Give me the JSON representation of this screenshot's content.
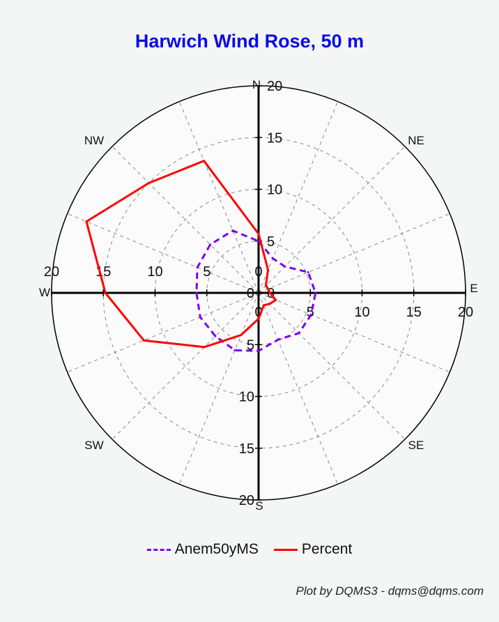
{
  "chart_data": {
    "type": "polar-line",
    "title": "Harwich Wind Rose, 50 m",
    "credit": "Plot by DQMS3 - dqms@dqms.com",
    "directions": [
      "N",
      "NE",
      "E",
      "SE",
      "S",
      "SW",
      "W",
      "NW"
    ],
    "radial_range": [
      0,
      20
    ],
    "radial_ticks": [
      0,
      5,
      10,
      15,
      20
    ],
    "grid": true,
    "legend_position": "bottom",
    "series": [
      {
        "name": "Anem50yMS",
        "style": "dashed",
        "color": "#7b00f0",
        "points": [
          {
            "angle": 0,
            "r": 5.0
          },
          {
            "angle": 22.5,
            "r": 3.6
          },
          {
            "angle": 45,
            "r": 3.6
          },
          {
            "angle": 67.5,
            "r": 5.2
          },
          {
            "angle": 90,
            "r": 5.5
          },
          {
            "angle": 112.5,
            "r": 5.5
          },
          {
            "angle": 135,
            "r": 5.5
          },
          {
            "angle": 157.5,
            "r": 4.9
          },
          {
            "angle": 180,
            "r": 5.6
          },
          {
            "angle": 202.5,
            "r": 6.0
          },
          {
            "angle": 225,
            "r": 5.9
          },
          {
            "angle": 247.5,
            "r": 6.1
          },
          {
            "angle": 270,
            "r": 6.0
          },
          {
            "angle": 292.5,
            "r": 6.4
          },
          {
            "angle": 315,
            "r": 6.6
          },
          {
            "angle": 337.5,
            "r": 6.5
          }
        ]
      },
      {
        "name": "Percent",
        "style": "solid",
        "color": "#ff0000",
        "points": [
          {
            "angle": 0,
            "r": 5.7
          },
          {
            "angle": 22.5,
            "r": 2.4
          },
          {
            "angle": 45,
            "r": 1.0
          },
          {
            "angle": 67.5,
            "r": 1.0
          },
          {
            "angle": 90,
            "r": 1.1
          },
          {
            "angle": 112.5,
            "r": 1.8
          },
          {
            "angle": 135,
            "r": 1.5
          },
          {
            "angle": 157.5,
            "r": 1.3
          },
          {
            "angle": 180,
            "r": 2.5
          },
          {
            "angle": 202.5,
            "r": 4.4
          },
          {
            "angle": 225,
            "r": 7.4
          },
          {
            "angle": 247.5,
            "r": 12.0
          },
          {
            "angle": 270,
            "r": 14.8
          },
          {
            "angle": 292.5,
            "r": 18.0
          },
          {
            "angle": 315,
            "r": 15.0
          },
          {
            "angle": 337.5,
            "r": 13.8
          }
        ]
      }
    ]
  }
}
